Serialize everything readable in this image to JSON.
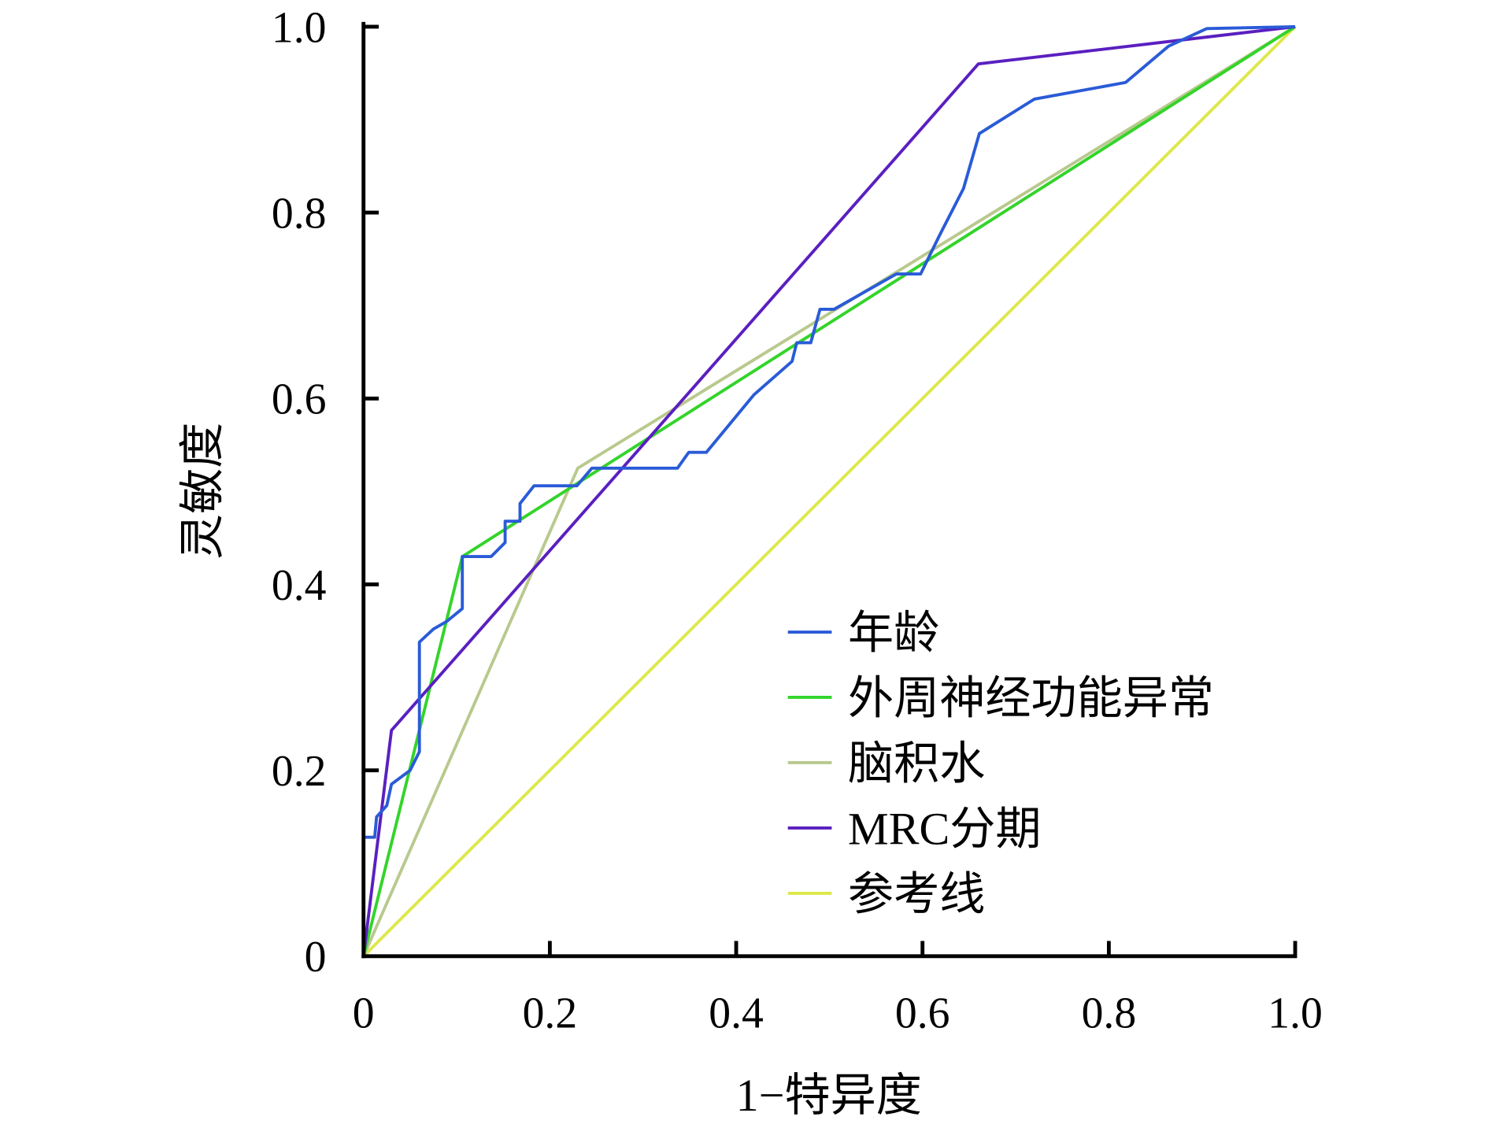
{
  "chart_data": {
    "type": "line",
    "title": "",
    "xlabel": "1−特异度",
    "ylabel": "灵敏度",
    "xlim": [
      0,
      1
    ],
    "ylim": [
      0,
      1
    ],
    "xticks": [
      "0",
      "0.2",
      "0.4",
      "0.6",
      "0.8",
      "1.0"
    ],
    "yticks": [
      "0",
      "0.2",
      "0.4",
      "0.6",
      "0.8",
      "1.0"
    ],
    "grid": false,
    "legend_position": "bottom-right",
    "series": [
      {
        "name": "年龄",
        "color": "#2a5bd7",
        "points": [
          [
            0,
            0
          ],
          [
            0,
            0.128
          ],
          [
            0.012,
            0.128
          ],
          [
            0.014,
            0.15
          ],
          [
            0.025,
            0.162
          ],
          [
            0.03,
            0.185
          ],
          [
            0.05,
            0.2
          ],
          [
            0.06,
            0.22
          ],
          [
            0.06,
            0.338
          ],
          [
            0.075,
            0.352
          ],
          [
            0.089,
            0.36
          ],
          [
            0.106,
            0.374
          ],
          [
            0.106,
            0.43
          ],
          [
            0.137,
            0.43
          ],
          [
            0.152,
            0.445
          ],
          [
            0.152,
            0.468
          ],
          [
            0.168,
            0.468
          ],
          [
            0.168,
            0.487
          ],
          [
            0.183,
            0.506
          ],
          [
            0.229,
            0.506
          ],
          [
            0.245,
            0.525
          ],
          [
            0.337,
            0.525
          ],
          [
            0.349,
            0.542
          ],
          [
            0.368,
            0.542
          ],
          [
            0.419,
            0.604
          ],
          [
            0.46,
            0.64
          ],
          [
            0.465,
            0.66
          ],
          [
            0.48,
            0.66
          ],
          [
            0.49,
            0.696
          ],
          [
            0.505,
            0.696
          ],
          [
            0.572,
            0.734
          ],
          [
            0.598,
            0.734
          ],
          [
            0.618,
            0.775
          ],
          [
            0.644,
            0.826
          ],
          [
            0.661,
            0.885
          ],
          [
            0.72,
            0.922
          ],
          [
            0.818,
            0.94
          ],
          [
            0.864,
            0.979
          ],
          [
            0.905,
            0.998
          ],
          [
            1,
            1
          ]
        ]
      },
      {
        "name": "外周神经功能异常",
        "color": "#33d42a",
        "points": [
          [
            0,
            0
          ],
          [
            0.106,
            0.43
          ],
          [
            1,
            1
          ]
        ]
      },
      {
        "name": "脑积水",
        "color": "#b9c98e",
        "points": [
          [
            0,
            0
          ],
          [
            0.23,
            0.525
          ],
          [
            1,
            1
          ]
        ]
      },
      {
        "name": "MRC分期",
        "color": "#5a1fc0",
        "points": [
          [
            0,
            0
          ],
          [
            0.03,
            0.243
          ],
          [
            0.66,
            0.96
          ],
          [
            1,
            1
          ]
        ]
      },
      {
        "name": "参考线",
        "color": "#dde84a",
        "points": [
          [
            0,
            0
          ],
          [
            1,
            1
          ]
        ]
      }
    ]
  }
}
